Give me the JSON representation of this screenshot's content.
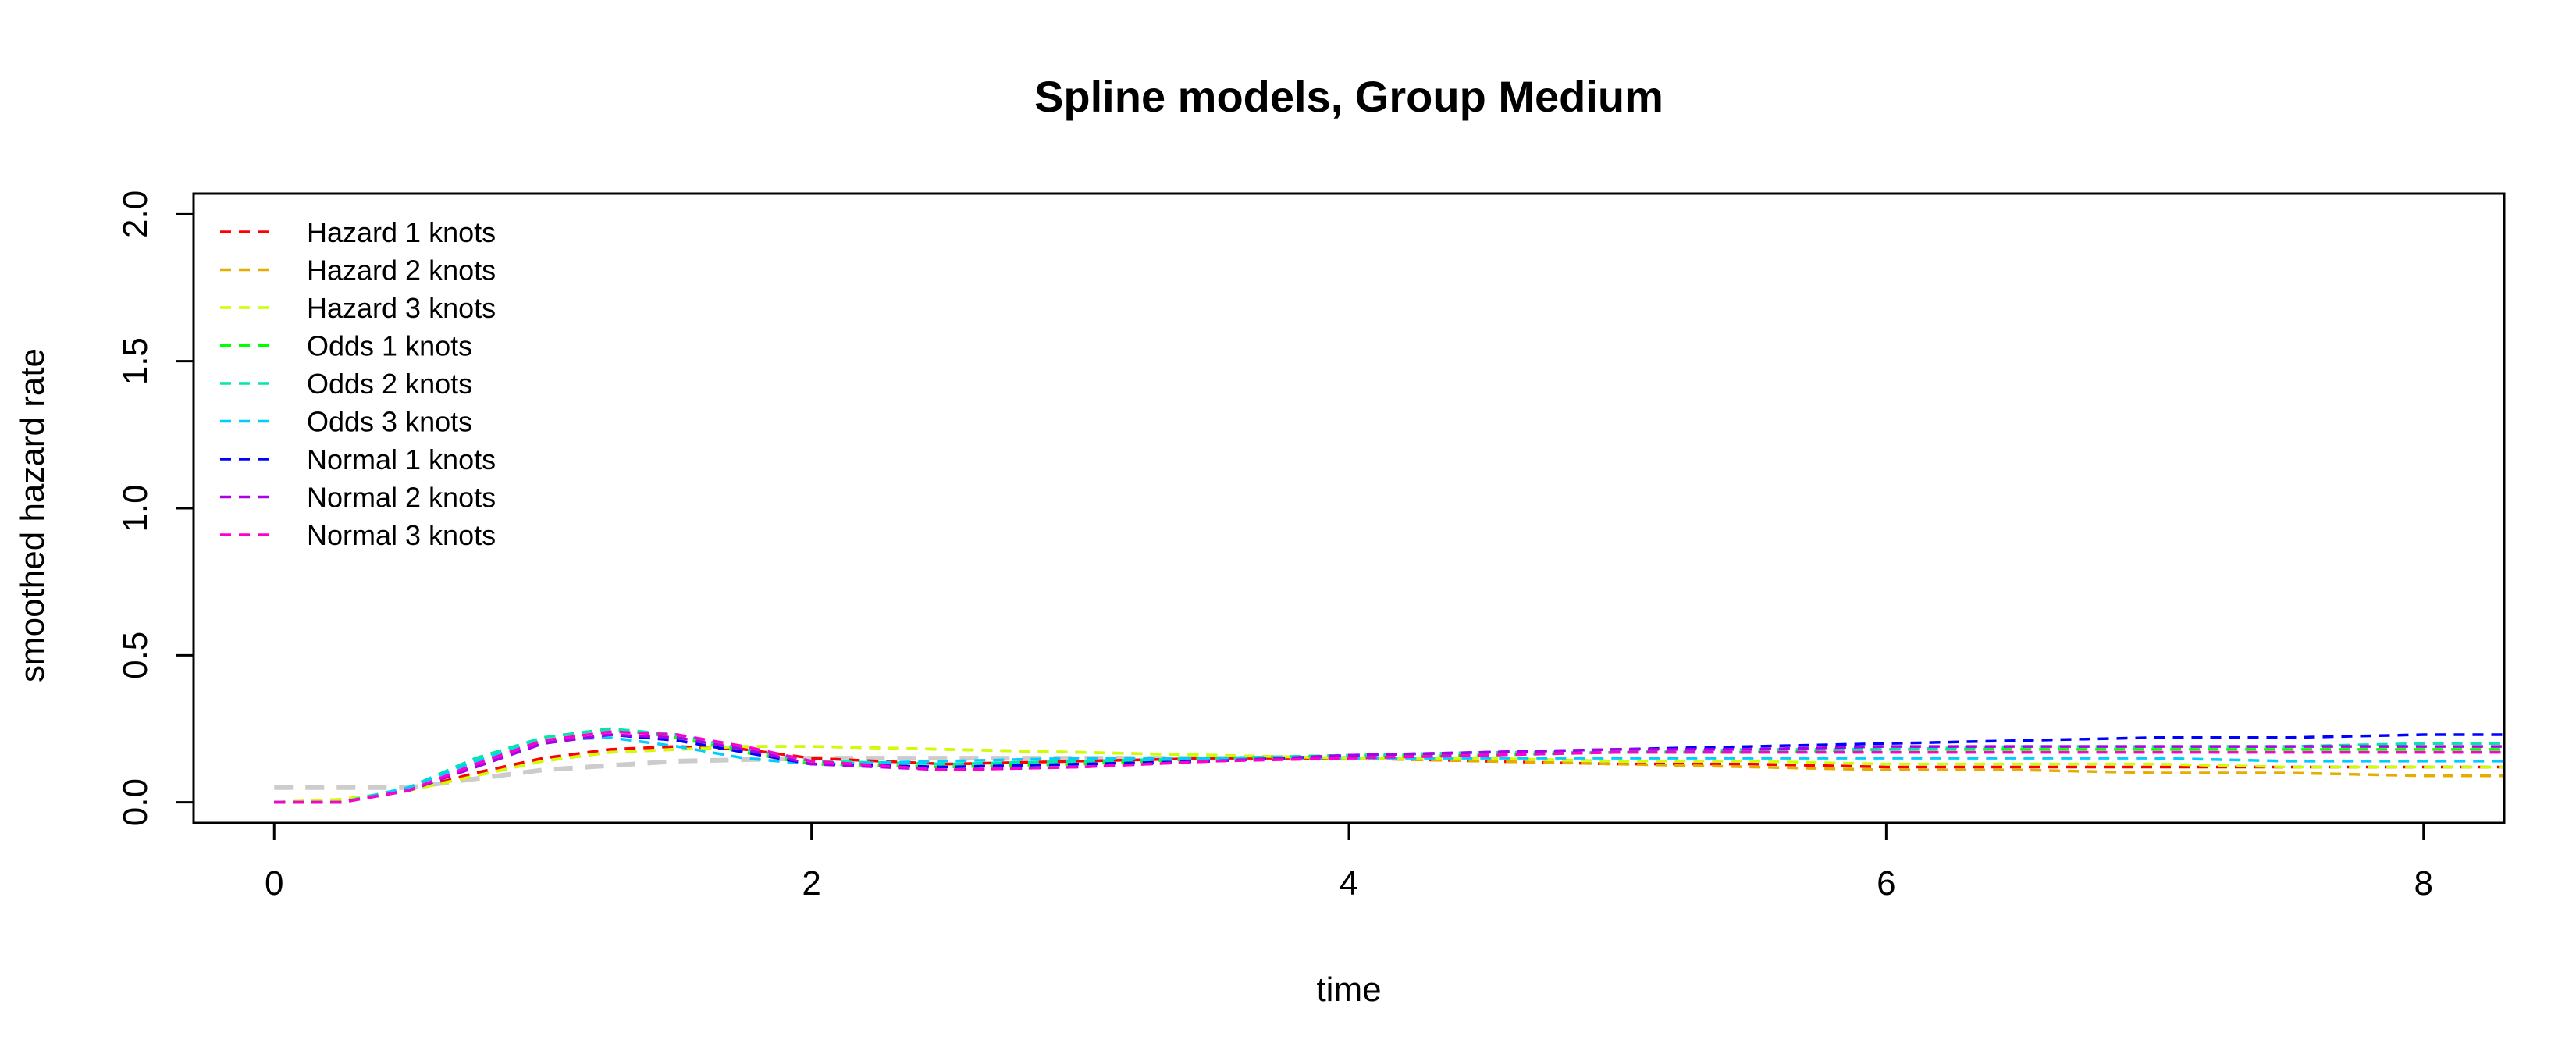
{
  "chart_data": {
    "type": "line",
    "title": "Spline models, Group Medium",
    "xlabel": "time",
    "ylabel": "smoothed hazard rate",
    "xlim": [
      -0.3,
      8.3
    ],
    "ylim": [
      -0.07,
      2.07
    ],
    "xticks": [
      0,
      2,
      4,
      6,
      8
    ],
    "yticks": [
      0.0,
      0.5,
      1.0,
      1.5,
      2.0
    ],
    "xtick_labels": [
      "0",
      "2",
      "4",
      "6",
      "8"
    ],
    "ytick_labels": [
      "0.0",
      "0.5",
      "1.0",
      "1.5",
      "2.0"
    ],
    "grid": false,
    "legend_position": "top-left",
    "x": [
      0,
      0.25,
      0.5,
      0.75,
      1.0,
      1.25,
      1.5,
      1.75,
      2.0,
      2.5,
      3.0,
      3.5,
      4.0,
      4.5,
      5.0,
      5.5,
      6.0,
      6.5,
      7.0,
      7.5,
      8.0,
      8.3
    ],
    "reference": {
      "color": "#cccccc",
      "x": [
        0,
        0.5,
        1.0,
        1.5,
        2.0,
        3.0,
        4.0
      ],
      "values": [
        0.05,
        0.05,
        0.11,
        0.14,
        0.15,
        0.15,
        0.15
      ]
    },
    "series": [
      {
        "name": "Hazard 1 knots",
        "color": "#ff0000",
        "values": [
          0.0,
          0.0,
          0.04,
          0.1,
          0.15,
          0.18,
          0.19,
          0.18,
          0.15,
          0.13,
          0.14,
          0.15,
          0.15,
          0.14,
          0.13,
          0.13,
          0.12,
          0.12,
          0.12,
          0.12,
          0.12,
          0.12
        ]
      },
      {
        "name": "Hazard 2 knots",
        "color": "#e6ac00",
        "values": [
          0.0,
          0.01,
          0.04,
          0.09,
          0.14,
          0.17,
          0.18,
          0.19,
          0.19,
          0.18,
          0.17,
          0.16,
          0.15,
          0.14,
          0.13,
          0.12,
          0.11,
          0.11,
          0.1,
          0.1,
          0.09,
          0.09
        ]
      },
      {
        "name": "Hazard 3 knots",
        "color": "#ccff00",
        "values": [
          0.0,
          0.01,
          0.04,
          0.09,
          0.14,
          0.17,
          0.18,
          0.19,
          0.19,
          0.18,
          0.17,
          0.16,
          0.15,
          0.15,
          0.14,
          0.14,
          0.13,
          0.13,
          0.13,
          0.12,
          0.12,
          0.12
        ]
      },
      {
        "name": "Odds 1 knots",
        "color": "#00ff00",
        "values": [
          0.0,
          0.0,
          0.05,
          0.15,
          0.22,
          0.25,
          0.22,
          0.17,
          0.13,
          0.12,
          0.13,
          0.15,
          0.16,
          0.16,
          0.17,
          0.17,
          0.18,
          0.18,
          0.18,
          0.18,
          0.18,
          0.18
        ]
      },
      {
        "name": "Odds 2 knots",
        "color": "#00e6ac",
        "values": [
          0.0,
          0.0,
          0.05,
          0.15,
          0.22,
          0.25,
          0.23,
          0.18,
          0.14,
          0.13,
          0.14,
          0.15,
          0.16,
          0.17,
          0.17,
          0.18,
          0.18,
          0.19,
          0.19,
          0.19,
          0.2,
          0.2
        ]
      },
      {
        "name": "Odds 3 knots",
        "color": "#00ccff",
        "values": [
          0.0,
          0.0,
          0.05,
          0.14,
          0.21,
          0.22,
          0.19,
          0.15,
          0.13,
          0.14,
          0.15,
          0.15,
          0.15,
          0.15,
          0.15,
          0.15,
          0.15,
          0.15,
          0.15,
          0.14,
          0.14,
          0.14
        ]
      },
      {
        "name": "Normal 1 knots",
        "color": "#0000ff",
        "values": [
          0.0,
          0.0,
          0.04,
          0.12,
          0.2,
          0.23,
          0.21,
          0.17,
          0.13,
          0.12,
          0.13,
          0.14,
          0.16,
          0.17,
          0.18,
          0.19,
          0.2,
          0.21,
          0.22,
          0.22,
          0.23,
          0.23
        ]
      },
      {
        "name": "Normal 2 knots",
        "color": "#ac00e6",
        "values": [
          0.0,
          0.0,
          0.04,
          0.12,
          0.2,
          0.23,
          0.22,
          0.18,
          0.13,
          0.11,
          0.12,
          0.14,
          0.16,
          0.17,
          0.18,
          0.18,
          0.19,
          0.19,
          0.19,
          0.19,
          0.19,
          0.19
        ]
      },
      {
        "name": "Normal 3 knots",
        "color": "#ff00cc",
        "values": [
          0.0,
          0.0,
          0.04,
          0.13,
          0.21,
          0.24,
          0.23,
          0.19,
          0.14,
          0.11,
          0.12,
          0.14,
          0.15,
          0.16,
          0.17,
          0.17,
          0.17,
          0.17,
          0.17,
          0.17,
          0.17,
          0.17
        ]
      }
    ]
  }
}
